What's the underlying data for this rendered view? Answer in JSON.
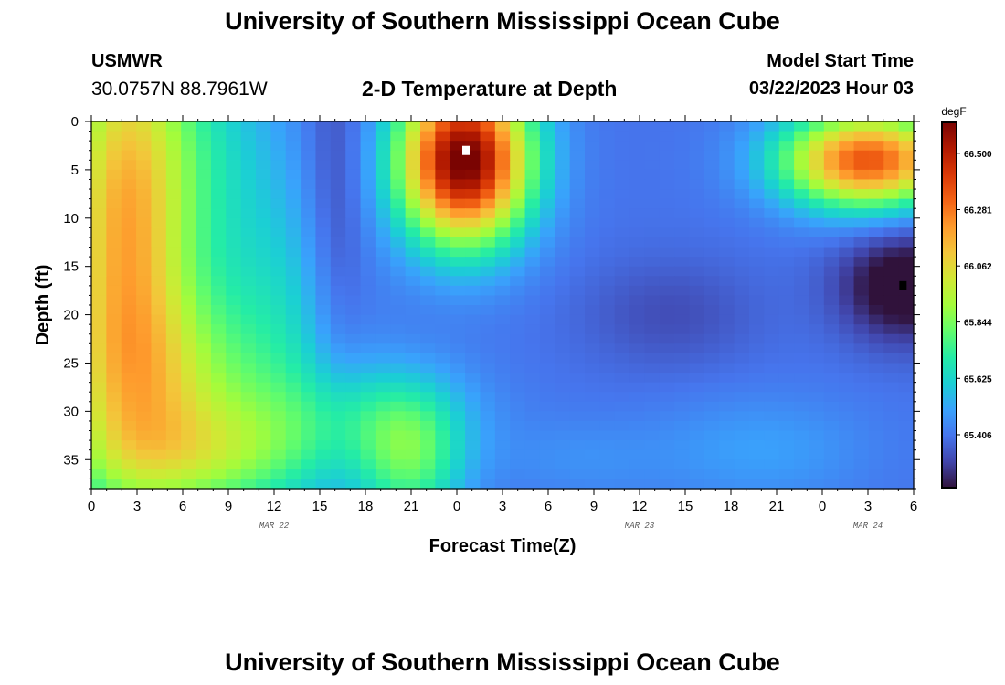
{
  "header": {
    "title": "University of Southern Mississippi Ocean Cube",
    "station": "USMWR",
    "coords": "30.0757N  88.7961W",
    "subtitle": "2-D Temperature at Depth",
    "model_label": "Model Start Time",
    "model_time": "03/22/2023 Hour 03"
  },
  "footer": {
    "title": "University of Southern Mississippi Ocean Cube"
  },
  "chart_data": {
    "type": "heatmap",
    "xlabel": "Forecast Time(Z)",
    "ylabel": "Depth (ft)",
    "xlim": [
      0,
      54
    ],
    "ylim": [
      0,
      38
    ],
    "y_inverted": true,
    "x_tick_values": [
      0,
      3,
      6,
      9,
      12,
      15,
      18,
      21,
      24,
      27,
      30,
      33,
      36,
      39,
      42,
      45,
      48,
      51,
      54
    ],
    "x_tick_labels": [
      "0",
      "3",
      "6",
      "9",
      "12",
      "15",
      "18",
      "21",
      "0",
      "3",
      "6",
      "9",
      "12",
      "15",
      "18",
      "21",
      "0",
      "3",
      "6"
    ],
    "y_tick_values": [
      0,
      5,
      10,
      15,
      20,
      25,
      30,
      35
    ],
    "y_tick_labels": [
      "0",
      "5",
      "10",
      "15",
      "20",
      "25",
      "30",
      "35"
    ],
    "date_labels": [
      {
        "x": 12,
        "text": "MAR 22"
      },
      {
        "x": 36,
        "text": "MAR 23"
      },
      {
        "x": 51,
        "text": "MAR 24"
      }
    ],
    "colorbar": {
      "unit": "degF",
      "min": 65.2,
      "max": 66.62,
      "tick_values": [
        66.5,
        66.281,
        66.062,
        65.844,
        65.625,
        65.406
      ],
      "tick_labels": [
        "66.500",
        "66.281",
        "66.062",
        "65.844",
        "65.625",
        "65.406"
      ],
      "colors": [
        "#30123b",
        "#4145ab",
        "#4675ed",
        "#39a2fc",
        "#1bcfd4",
        "#24eca6",
        "#61fc6c",
        "#a4fc3b",
        "#d1e834",
        "#f3c63a",
        "#fe9b2d",
        "#f36315",
        "#d93806",
        "#b11901",
        "#7a0402"
      ]
    },
    "grid_rows": 38,
    "grid_cols": 55,
    "grid_source": "temperature field estimated from gridlines; blob decomposition",
    "base_temp": 65.4,
    "blobs": [
      {
        "x": 2,
        "y": 10,
        "sx": 3,
        "sy": 16,
        "a": 0.68
      },
      {
        "x": 7,
        "y": 4,
        "sx": 4,
        "sy": 10,
        "a": 0.22
      },
      {
        "x": 5,
        "y": 28,
        "sx": 5,
        "sy": 8,
        "a": 0.45
      },
      {
        "x": 8,
        "y": 35,
        "sx": 6,
        "sy": 4,
        "a": 0.28
      },
      {
        "x": 21,
        "y": 35,
        "sx": 2.5,
        "sy": 5,
        "a": 0.35
      },
      {
        "x": 18,
        "y": 30,
        "sx": 5,
        "sy": 4,
        "a": 0.18
      },
      {
        "x": 24.5,
        "y": 4,
        "sx": 3,
        "sy": 6,
        "a": 1.25
      },
      {
        "x": 51,
        "y": 4,
        "sx": 4,
        "sy": 3.5,
        "a": 0.95
      },
      {
        "x": 16,
        "y": 10,
        "sx": 1.5,
        "sy": 14,
        "a": -0.12
      },
      {
        "x": 53.5,
        "y": 17,
        "sx": 3,
        "sy": 4,
        "a": -0.28
      },
      {
        "x": 38,
        "y": 20,
        "sx": 4,
        "sy": 4,
        "a": -0.08
      },
      {
        "x": 44,
        "y": 34,
        "sx": 5,
        "sy": 4,
        "a": 0.1
      },
      {
        "x": 32,
        "y": 35,
        "sx": 4,
        "sy": 3,
        "a": 0.06
      },
      {
        "x": 13,
        "y": 20,
        "sx": 3,
        "sy": 10,
        "a": 0.15
      }
    ],
    "markers": [
      {
        "x": 24.6,
        "y": 3,
        "color": "#ffffff",
        "label": "max"
      },
      {
        "x": 53.3,
        "y": 17,
        "color": "#000000",
        "label": "min"
      }
    ]
  }
}
